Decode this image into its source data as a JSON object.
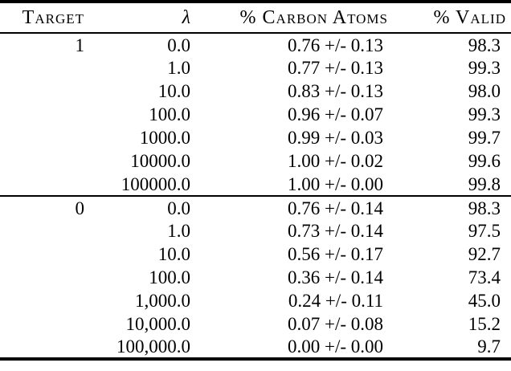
{
  "colors": {
    "background": "#ffffff",
    "text": "#000000",
    "rule": "#000000"
  },
  "table": {
    "columns": [
      {
        "label": "Target"
      },
      {
        "label": "λ"
      },
      {
        "label": "% Carbon Atoms"
      },
      {
        "label": "% Valid"
      }
    ],
    "sections": [
      {
        "target": "1",
        "rows": [
          {
            "lambda": "0.0",
            "carbon": "0.76 +/- 0.13",
            "valid": "98.3"
          },
          {
            "lambda": "1.0",
            "carbon": "0.77 +/- 0.13",
            "valid": "99.3"
          },
          {
            "lambda": "10.0",
            "carbon": "0.83 +/- 0.13",
            "valid": "98.0"
          },
          {
            "lambda": "100.0",
            "carbon": "0.96 +/- 0.07",
            "valid": "99.3"
          },
          {
            "lambda": "1000.0",
            "carbon": "0.99 +/- 0.03",
            "valid": "99.7"
          },
          {
            "lambda": "10000.0",
            "carbon": "1.00 +/- 0.02",
            "valid": "99.6"
          },
          {
            "lambda": "100000.0",
            "carbon": "1.00 +/- 0.00",
            "valid": "99.8"
          }
        ]
      },
      {
        "target": "0",
        "rows": [
          {
            "lambda": "0.0",
            "carbon": "0.76 +/- 0.14",
            "valid": "98.3"
          },
          {
            "lambda": "1.0",
            "carbon": "0.73 +/- 0.14",
            "valid": "97.5"
          },
          {
            "lambda": "10.0",
            "carbon": "0.56 +/- 0.17",
            "valid": "92.7"
          },
          {
            "lambda": "100.0",
            "carbon": "0.36 +/- 0.14",
            "valid": "73.4"
          },
          {
            "lambda": "1,000.0",
            "carbon": "0.24 +/- 0.11",
            "valid": "45.0"
          },
          {
            "lambda": "10,000.0",
            "carbon": "0.07 +/- 0.08",
            "valid": "15.2"
          },
          {
            "lambda": "100,000.0",
            "carbon": "0.00 +/- 0.00",
            "valid": "9.7"
          }
        ]
      }
    ]
  }
}
